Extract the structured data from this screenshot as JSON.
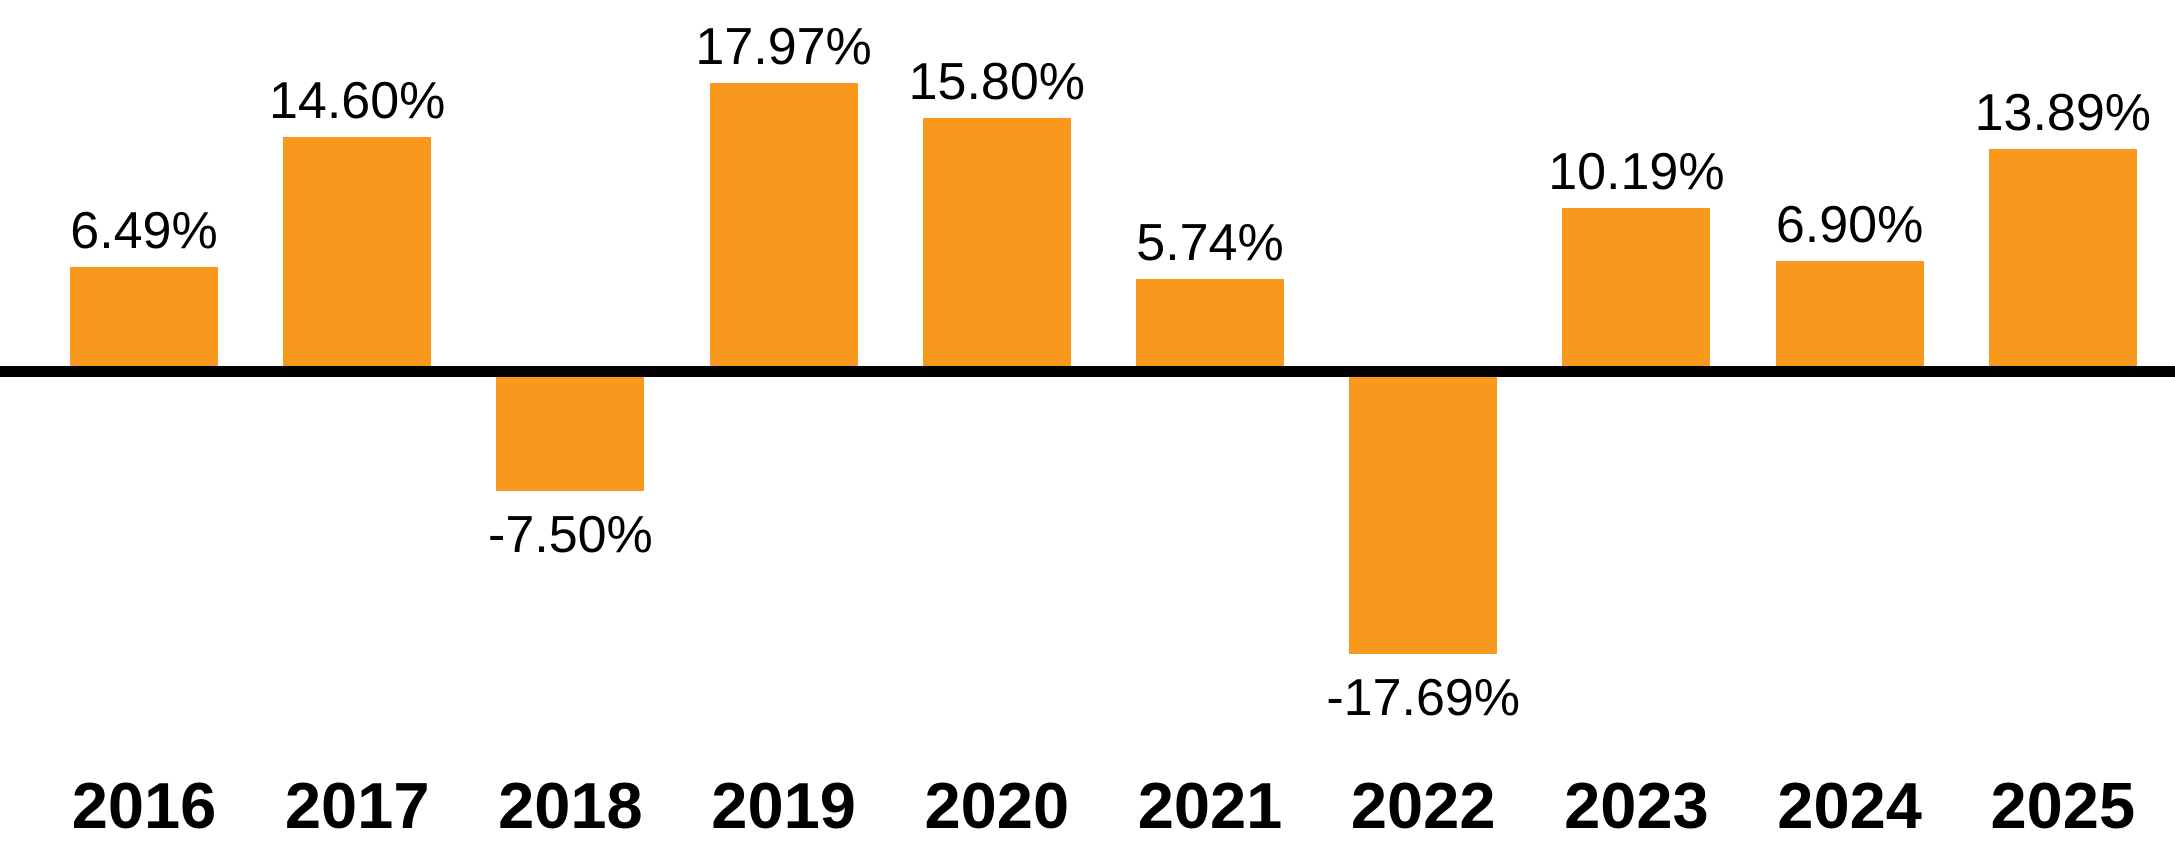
{
  "chart_data": {
    "type": "bar",
    "categories": [
      "2016",
      "2017",
      "2018",
      "2019",
      "2020",
      "2021",
      "2022",
      "2023",
      "2024",
      "2025"
    ],
    "values": [
      6.49,
      14.6,
      -7.5,
      17.97,
      15.8,
      5.74,
      -17.69,
      10.19,
      6.9,
      13.89
    ],
    "labels": [
      "6.49%",
      "14.60%",
      "-7.50%",
      "17.97%",
      "15.80%",
      "5.74%",
      "-17.69%",
      "10.19%",
      "6.90%",
      "13.89%"
    ],
    "title": "",
    "xlabel": "",
    "ylabel": "",
    "ylim": [
      -17.69,
      17.97
    ],
    "grid": "off",
    "legend": "none",
    "axis_style": "single black zero baseline, no y-axis, no tick marks",
    "bar_color": "#F8981D",
    "axis_color": "#000000",
    "label_color": "#000000",
    "background_color": "#FFFFFF"
  }
}
